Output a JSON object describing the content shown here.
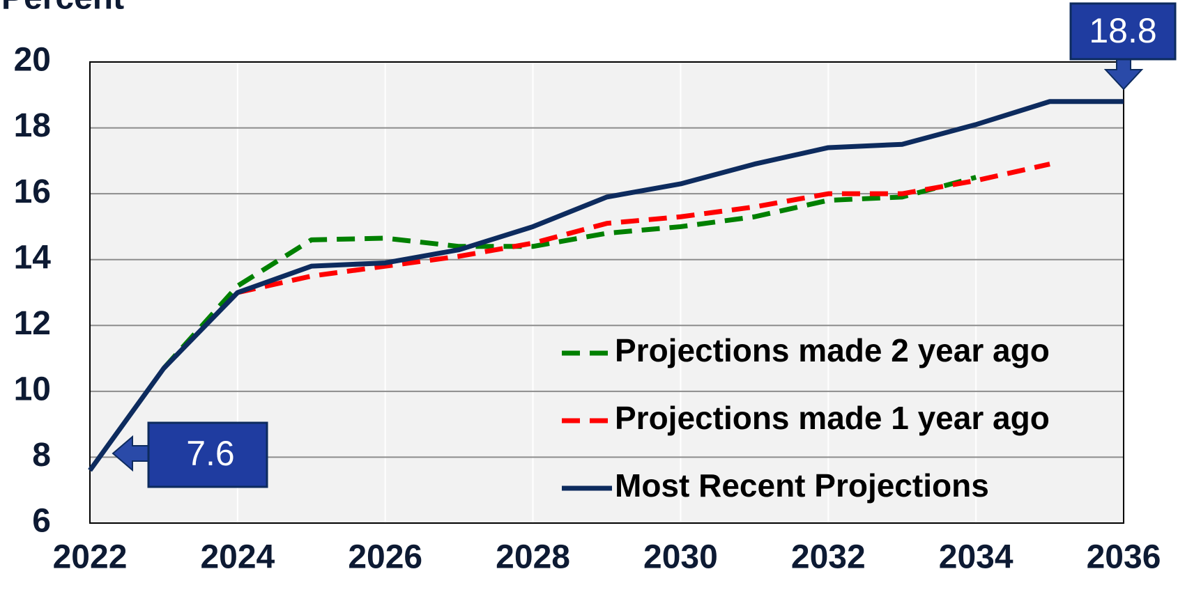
{
  "chart_data": {
    "type": "line",
    "y_label": "Percent",
    "x": [
      2022,
      2023,
      2024,
      2025,
      2026,
      2027,
      2028,
      2029,
      2030,
      2031,
      2032,
      2033,
      2034,
      2035,
      2036
    ],
    "xlim": [
      2022,
      2036
    ],
    "xticks": [
      2022,
      2024,
      2026,
      2028,
      2030,
      2032,
      2034,
      2036
    ],
    "ylim": [
      6,
      20
    ],
    "yticks": [
      6,
      8,
      10,
      12,
      14,
      16,
      18,
      20
    ],
    "grid": true,
    "series": [
      {
        "name": "Projections made 2 year ago",
        "color": "#008000",
        "dashed": true,
        "values": [
          null,
          10.7,
          13.2,
          14.6,
          14.65,
          14.4,
          14.4,
          14.8,
          15.0,
          15.3,
          15.8,
          15.9,
          16.5,
          null,
          null
        ]
      },
      {
        "name": "Projections made 1 year ago",
        "color": "#ff0000",
        "dashed": true,
        "values": [
          null,
          null,
          13.0,
          13.5,
          13.8,
          14.1,
          14.5,
          15.1,
          15.3,
          15.6,
          16.0,
          16.0,
          16.4,
          16.9,
          null
        ]
      },
      {
        "name": "Most Recent Projections",
        "color": "#0d2b5e",
        "dashed": false,
        "values": [
          7.6,
          10.7,
          13.0,
          13.8,
          13.9,
          14.3,
          15.0,
          15.9,
          16.3,
          16.9,
          17.4,
          17.5,
          18.1,
          18.8,
          18.8
        ]
      }
    ]
  }
}
